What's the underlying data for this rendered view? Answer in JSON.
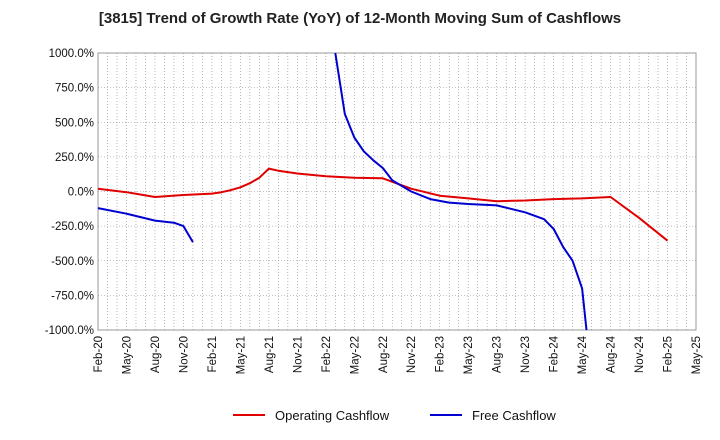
{
  "chart_data": {
    "type": "line",
    "title": "[3815]  Trend of Growth Rate (YoY) of 12-Month Moving Sum of Cashflows",
    "xlabel": "",
    "ylabel": "",
    "ylim": [
      -1000,
      1000
    ],
    "y_ticks": [
      1000,
      750,
      500,
      250,
      0,
      -250,
      -500,
      -750,
      -1000
    ],
    "y_tick_labels": [
      "1000.0%",
      "750.0%",
      "500.0%",
      "250.0%",
      "0.0%",
      "-250.0%",
      "-500.0%",
      "-750.0%",
      "-1000.0%"
    ],
    "x_ticks": [
      "2020-02",
      "2020-05",
      "2020-08",
      "2020-11",
      "2021-02",
      "2021-05",
      "2021-08",
      "2021-11",
      "2022-02",
      "2022-05",
      "2022-08",
      "2022-11",
      "2023-02",
      "2023-05",
      "2023-08",
      "2023-11",
      "2024-02",
      "2024-05",
      "2024-08",
      "2024-11",
      "2025-02",
      "2025-05"
    ],
    "x_tick_labels": [
      "Feb-20",
      "May-20",
      "Aug-20",
      "Nov-20",
      "Feb-21",
      "May-21",
      "Aug-21",
      "Nov-21",
      "Feb-22",
      "May-22",
      "Aug-22",
      "Nov-22",
      "Feb-23",
      "May-23",
      "Aug-23",
      "Nov-23",
      "Feb-24",
      "May-24",
      "Aug-24",
      "Nov-24",
      "Feb-25",
      "May-25"
    ],
    "x_range": [
      "2020-02",
      "2025-05"
    ],
    "grid": true,
    "legend_position": "bottom",
    "series": [
      {
        "name": "Operating Cashflow",
        "color": "#e00000",
        "points": [
          [
            "2020-02",
            20
          ],
          [
            "2020-05",
            -5
          ],
          [
            "2020-08",
            -40
          ],
          [
            "2020-11",
            -25
          ],
          [
            "2021-02",
            -15
          ],
          [
            "2021-03",
            -5
          ],
          [
            "2021-04",
            10
          ],
          [
            "2021-05",
            30
          ],
          [
            "2021-06",
            60
          ],
          [
            "2021-07",
            100
          ],
          [
            "2021-08",
            165
          ],
          [
            "2021-09",
            150
          ],
          [
            "2021-11",
            130
          ],
          [
            "2022-02",
            110
          ],
          [
            "2022-05",
            100
          ],
          [
            "2022-08",
            95
          ],
          [
            "2022-09",
            70
          ],
          [
            "2022-11",
            20
          ],
          [
            "2023-02",
            -30
          ],
          [
            "2023-05",
            -50
          ],
          [
            "2023-08",
            -70
          ],
          [
            "2023-11",
            -65
          ],
          [
            "2024-02",
            -55
          ],
          [
            "2024-05",
            -50
          ],
          [
            "2024-08",
            -40
          ],
          [
            "2024-11",
            -190
          ],
          [
            "2025-02",
            -355
          ]
        ]
      },
      {
        "name": "Free Cashflow",
        "color": "#0000d0",
        "points": [
          [
            "2020-02",
            -120
          ],
          [
            "2020-05",
            -160
          ],
          [
            "2020-08",
            -210
          ],
          [
            "2020-10",
            -225
          ],
          [
            "2020-11",
            -250
          ],
          [
            "2020-12",
            -365
          ]
        ],
        "points_2": [
          [
            "2022-03",
            1000
          ],
          [
            "2022-04",
            560
          ],
          [
            "2022-05",
            390
          ],
          [
            "2022-06",
            290
          ],
          [
            "2022-07",
            225
          ],
          [
            "2022-08",
            170
          ],
          [
            "2022-09",
            80
          ],
          [
            "2022-11",
            0
          ],
          [
            "2023-01",
            -55
          ],
          [
            "2023-03",
            -80
          ],
          [
            "2023-05",
            -90
          ],
          [
            "2023-08",
            -100
          ],
          [
            "2023-11",
            -150
          ],
          [
            "2024-01",
            -200
          ],
          [
            "2024-02",
            -270
          ],
          [
            "2024-03",
            -400
          ],
          [
            "2024-04",
            -500
          ],
          [
            "2024-05",
            -700
          ],
          [
            "2024-05-15",
            -1000
          ]
        ]
      }
    ]
  }
}
